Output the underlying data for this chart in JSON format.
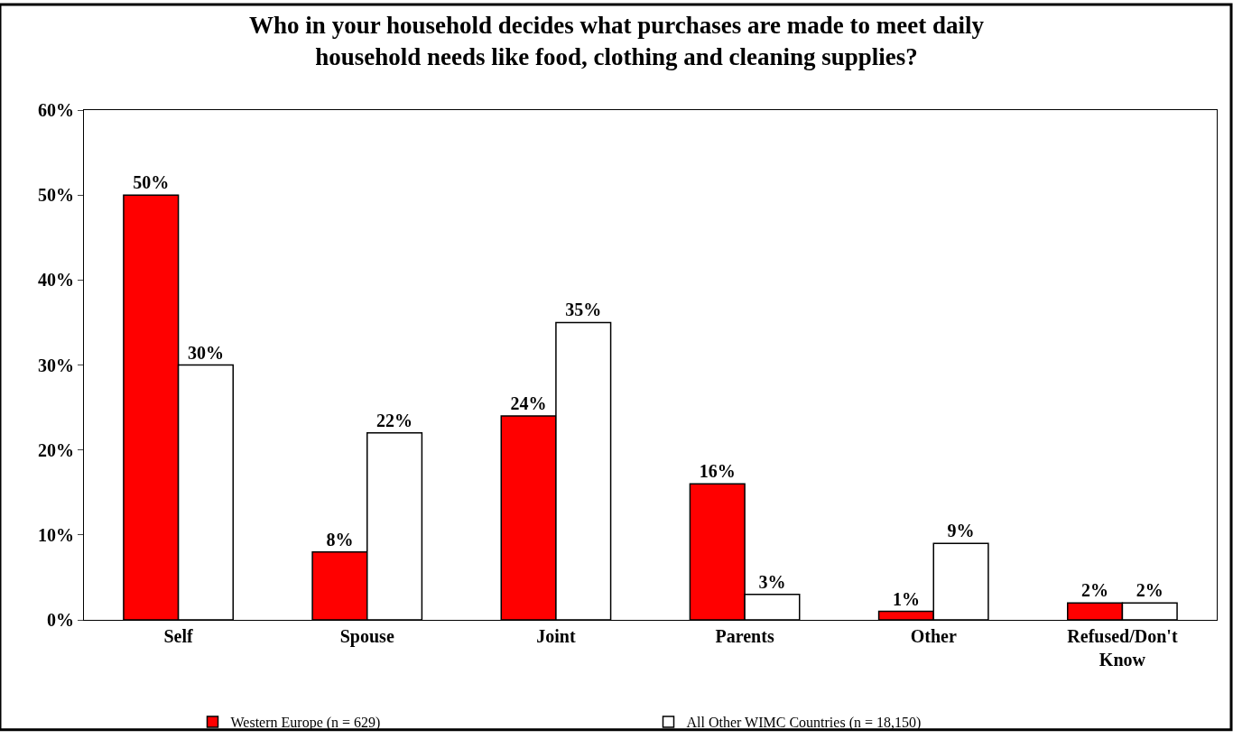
{
  "chart_data": {
    "type": "bar",
    "title": "Who in your household decides what purchases are made to meet daily\nhousehold needs like food, clothing and cleaning supplies?",
    "categories": [
      "Self",
      "Spouse",
      "Joint",
      "Parents",
      "Other",
      "Refused/Don't\nKnow"
    ],
    "series": [
      {
        "name": "Western Europe (n = 629)",
        "color": "#ff0000",
        "values": [
          50,
          8,
          24,
          16,
          1,
          2
        ],
        "value_labels": [
          "50%",
          "8%",
          "24%",
          "16%",
          "1%",
          "2%"
        ]
      },
      {
        "name": "All Other WIMC Countries (n = 18,150)",
        "color": "#ffffff",
        "values": [
          30,
          22,
          35,
          3,
          9,
          2
        ],
        "value_labels": [
          "30%",
          "22%",
          "35%",
          "3%",
          "9%",
          "2%"
        ]
      }
    ],
    "ylim": [
      0,
      60
    ],
    "yticks": [
      {
        "value": 0,
        "label": "0%"
      },
      {
        "value": 10,
        "label": "10%"
      },
      {
        "value": 20,
        "label": "20%"
      },
      {
        "value": 30,
        "label": "30%"
      },
      {
        "value": 40,
        "label": "40%"
      },
      {
        "value": 50,
        "label": "50%"
      },
      {
        "value": 60,
        "label": "60%"
      }
    ],
    "grid": false,
    "legend": "bottom"
  }
}
